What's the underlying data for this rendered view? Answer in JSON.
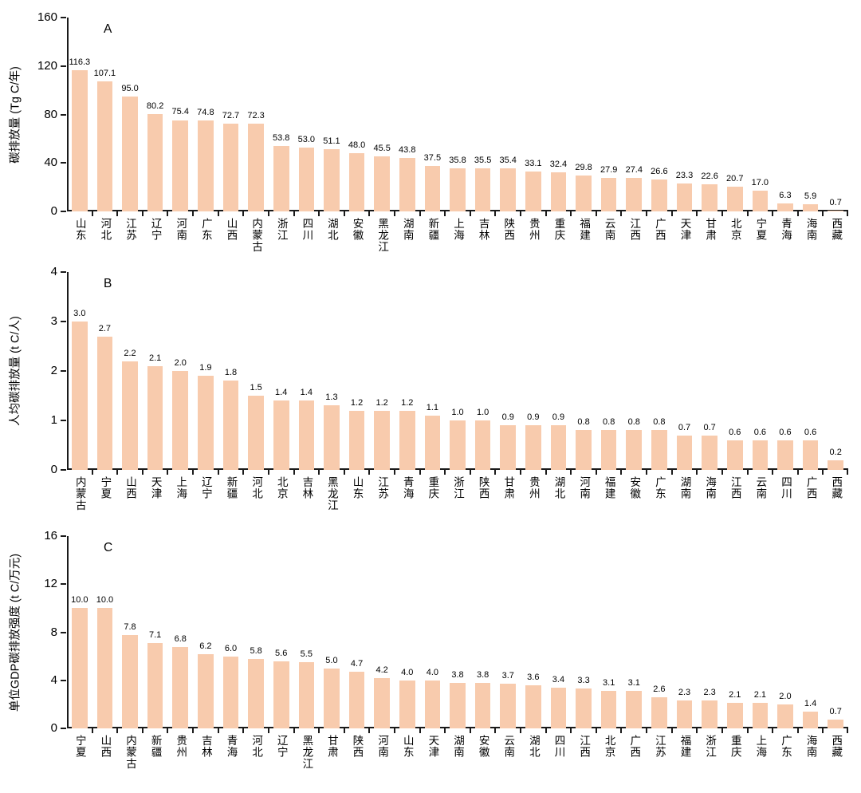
{
  "style": {
    "bar_color": "#F8CBAD",
    "axis_color": "#1a1a1a",
    "text_color": "#000000",
    "background": "#ffffff"
  },
  "chart_data": [
    {
      "panel": "A",
      "type": "bar",
      "ylabel": "碳排放量 (Tg C/年)",
      "ylim": [
        0,
        160
      ],
      "yticks": [
        "0",
        "40",
        "80",
        "120",
        "160"
      ],
      "legend": "none",
      "grid": "off",
      "categories": [
        "山东",
        "河北",
        "江苏",
        "辽宁",
        "河南",
        "广东",
        "山西",
        "内蒙古",
        "浙江",
        "四川",
        "湖北",
        "安徽",
        "黑龙江",
        "湖南",
        "新疆",
        "上海",
        "吉林",
        "陕西",
        "贵州",
        "重庆",
        "福建",
        "云南",
        "江西",
        "广西",
        "天津",
        "甘肃",
        "北京",
        "宁夏",
        "青海",
        "海南",
        "西藏"
      ],
      "values": [
        "116.3",
        "107.1",
        "95.0",
        "80.2",
        "75.4",
        "74.8",
        "72.7",
        "72.3",
        "53.8",
        "53.0",
        "51.1",
        "48.0",
        "45.5",
        "43.8",
        "37.5",
        "35.8",
        "35.5",
        "35.4",
        "33.1",
        "32.4",
        "29.8",
        "27.9",
        "27.4",
        "26.6",
        "23.3",
        "22.6",
        "20.7",
        "17.0",
        "6.3",
        "5.9",
        "0.7"
      ]
    },
    {
      "panel": "B",
      "type": "bar",
      "ylabel": "人均碳排放量 (t C/人)",
      "ylim": [
        0,
        4
      ],
      "yticks": [
        "0",
        "1",
        "2",
        "3",
        "4"
      ],
      "legend": "none",
      "grid": "off",
      "categories": [
        "内蒙古",
        "宁夏",
        "山西",
        "天津",
        "上海",
        "辽宁",
        "新疆",
        "河北",
        "北京",
        "吉林",
        "黑龙江",
        "山东",
        "江苏",
        "青海",
        "重庆",
        "浙江",
        "陕西",
        "甘肃",
        "贵州",
        "湖北",
        "河南",
        "福建",
        "安徽",
        "广东",
        "湖南",
        "海南",
        "江西",
        "云南",
        "四川",
        "广西",
        "西藏"
      ],
      "values": [
        "3.0",
        "2.7",
        "2.2",
        "2.1",
        "2.0",
        "1.9",
        "1.8",
        "1.5",
        "1.4",
        "1.4",
        "1.3",
        "1.2",
        "1.2",
        "1.2",
        "1.1",
        "1.0",
        "1.0",
        "0.9",
        "0.9",
        "0.9",
        "0.8",
        "0.8",
        "0.8",
        "0.8",
        "0.7",
        "0.7",
        "0.6",
        "0.6",
        "0.6",
        "0.6",
        "0.2"
      ]
    },
    {
      "panel": "C",
      "type": "bar",
      "ylabel": "单位GDP碳排放强度 (t C/万元)",
      "ylim": [
        0,
        16
      ],
      "yticks": [
        "0",
        "4",
        "8",
        "12",
        "16"
      ],
      "legend": "none",
      "grid": "off",
      "categories": [
        "宁夏",
        "山西",
        "内蒙古",
        "新疆",
        "贵州",
        "吉林",
        "青海",
        "河北",
        "辽宁",
        "黑龙江",
        "甘肃",
        "陕西",
        "河南",
        "山东",
        "天津",
        "湖南",
        "安徽",
        "云南",
        "湖北",
        "四川",
        "江西",
        "北京",
        "广西",
        "江苏",
        "福建",
        "浙江",
        "重庆",
        "上海",
        "广东",
        "海南",
        "西藏"
      ],
      "values": [
        "10.0",
        "10.0",
        "7.8",
        "7.1",
        "6.8",
        "6.2",
        "6.0",
        "5.8",
        "5.6",
        "5.5",
        "5.0",
        "4.7",
        "4.2",
        "4.0",
        "4.0",
        "3.8",
        "3.8",
        "3.7",
        "3.6",
        "3.4",
        "3.3",
        "3.1",
        "3.1",
        "2.6",
        "2.3",
        "2.3",
        "2.1",
        "2.1",
        "2.0",
        "1.4",
        "0.7"
      ]
    }
  ]
}
